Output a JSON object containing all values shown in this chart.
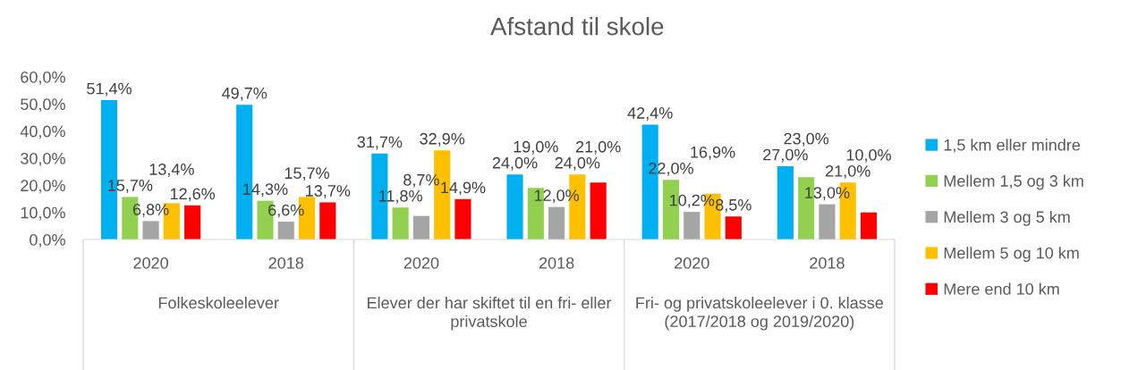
{
  "chart_data": {
    "type": "bar",
    "title": "Afstand til skole",
    "categories": [
      "2020",
      "2018",
      "2020",
      "2018",
      "2020",
      "2018"
    ],
    "annotations": [
      "Folkeskoleelever",
      "Elever der har skiftet til en fri- eller privatskole",
      "Fri- og privatskoleelever i 0. klasse (2017/2018 og 2019/2020)"
    ],
    "series": [
      {
        "name": "1,5 km eller mindre",
        "color": "#00b0f0",
        "values": [
          51.4,
          49.7,
          31.7,
          24.0,
          42.4,
          27.0
        ],
        "value_labels": [
          "51,4%",
          "49,7%",
          "31,7%",
          "24,0%",
          "42,4%",
          "27,0%"
        ]
      },
      {
        "name": "Mellem 1,5 og 3 km",
        "color": "#92d050",
        "values": [
          15.7,
          14.3,
          11.8,
          19.0,
          22.0,
          23.0
        ],
        "value_labels": [
          "15,7%",
          "14,3%",
          "11,8%",
          "19,0%",
          "22,0%",
          "23,0%"
        ]
      },
      {
        "name": "Mellem 3 og 5 km",
        "color": "#a5a5a5",
        "values": [
          6.8,
          6.6,
          8.7,
          12.0,
          10.2,
          13.0
        ],
        "value_labels": [
          "6,8%",
          "6,6%",
          "8,7%",
          "12,0%",
          "10,2%",
          "13,0%"
        ]
      },
      {
        "name": "Mellem 5 og 10 km",
        "color": "#ffc000",
        "values": [
          13.4,
          15.7,
          32.9,
          24.0,
          16.9,
          21.0
        ],
        "value_labels": [
          "13,4%",
          "15,7%",
          "32,9%",
          "24,0%",
          "16,9%",
          "21,0%"
        ]
      },
      {
        "name": "Mere end 10 km",
        "color": "#ff0000",
        "values": [
          12.6,
          13.7,
          14.9,
          21.0,
          8.5,
          10.0
        ],
        "value_labels": [
          "12,6%",
          "13,7%",
          "14,9%",
          "21,0%",
          "8,5%",
          "10,0%"
        ]
      }
    ],
    "ylim": [
      0,
      60
    ],
    "yticks": [
      {
        "value": 0,
        "label": "0,0%"
      },
      {
        "value": 10,
        "label": "10,0%"
      },
      {
        "value": 20,
        "label": "20,0%"
      },
      {
        "value": 30,
        "label": "30,0%"
      },
      {
        "value": 40,
        "label": "40,0%"
      },
      {
        "value": 50,
        "label": "50,0%"
      },
      {
        "value": 60,
        "label": "60,0%"
      }
    ],
    "legend": "right"
  }
}
